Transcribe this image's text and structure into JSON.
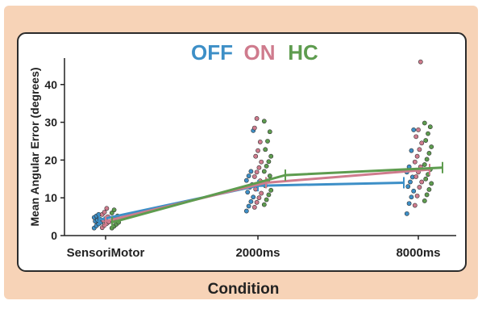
{
  "legend": [
    {
      "label": "OFF",
      "color": "#3d8fc7"
    },
    {
      "label": "ON",
      "color": "#cf7b8d"
    },
    {
      "label": "HC",
      "color": "#5e9c4f"
    }
  ],
  "colors": {
    "background": "#f7d3b7",
    "panel": "#ffffff",
    "panel_border": "#2b2b2b"
  },
  "chart_data": {
    "type": "line",
    "title": "",
    "xlabel": "Condition",
    "ylabel": "Mean Angular Error (degrees)",
    "categories": [
      "SensoriMotor",
      "2000ms",
      "8000ms"
    ],
    "ylim": [
      0,
      47
    ],
    "yticks": [
      0,
      10,
      20,
      30,
      40
    ],
    "grid": false,
    "legend_position": "top-center",
    "series": [
      {
        "name": "OFF",
        "values": [
          4.2,
          13.2,
          14.0
        ],
        "points": [
          [
            2.0,
            2.6,
            3.1,
            3.5,
            3.8,
            4.1,
            4.4,
            4.8,
            5.2,
            5.6
          ],
          [
            6.5,
            7.8,
            9.0,
            10.2,
            11.5,
            12.8,
            13.5,
            14.6,
            15.8,
            17.0,
            27.8
          ],
          [
            5.8,
            8.5,
            10.2,
            11.8,
            13.0,
            14.2,
            15.5,
            16.8,
            18.2,
            22.5,
            28.0
          ]
        ]
      },
      {
        "name": "ON",
        "values": [
          3.8,
          14.0,
          17.5
        ],
        "points": [
          [
            2.1,
            2.7,
            3.2,
            3.6,
            4.0,
            4.5,
            5.0,
            5.6,
            6.2,
            7.2
          ],
          [
            7.5,
            8.8,
            10.0,
            11.2,
            12.3,
            13.5,
            14.5,
            15.6,
            16.8,
            18.0,
            19.5,
            21.0,
            22.5,
            24.8,
            28.5,
            31.0
          ],
          [
            8.0,
            10.5,
            12.8,
            14.2,
            15.6,
            16.8,
            18.2,
            19.5,
            21.0,
            22.8,
            24.5,
            26.2,
            28.0,
            46.0
          ]
        ]
      },
      {
        "name": "HC",
        "values": [
          3.5,
          16.0,
          18.0
        ],
        "points": [
          [
            2.0,
            2.5,
            3.0,
            3.5,
            4.0,
            4.6,
            5.2,
            6.0,
            6.8
          ],
          [
            8.2,
            9.5,
            10.8,
            12.0,
            13.2,
            14.5,
            15.8,
            17.0,
            18.4,
            19.6,
            21.0,
            22.8,
            25.0,
            27.5,
            30.3
          ],
          [
            9.2,
            10.8,
            12.2,
            13.8,
            15.0,
            16.2,
            17.5,
            18.8,
            20.2,
            21.8,
            23.5,
            25.2,
            27.0,
            28.8,
            29.8
          ]
        ]
      }
    ]
  }
}
